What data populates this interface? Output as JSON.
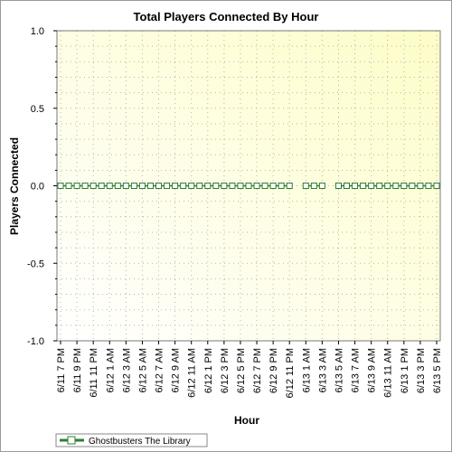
{
  "chart_data": {
    "type": "line",
    "title": "Total Players Connected By Hour",
    "xlabel": "Hour",
    "ylabel": "Players Connected",
    "ylim": [
      -1.0,
      1.0
    ],
    "y_ticks": [
      "1.0",
      "0.5",
      "0.0",
      "-0.5",
      "-1.0"
    ],
    "y_tick_values": [
      1.0,
      0.5,
      0.0,
      -0.5,
      -1.0
    ],
    "x_tick_labels": [
      "6/11 7 PM",
      "6/11 9 PM",
      "6/11 11 PM",
      "6/12 1 AM",
      "6/12 3 AM",
      "6/12 5 AM",
      "6/12 7 AM",
      "6/12 9 AM",
      "6/12 11 AM",
      "6/12 1 PM",
      "6/12 3 PM",
      "6/12 5 PM",
      "6/12 7 PM",
      "6/12 9 PM",
      "6/12 11 PM",
      "6/13 1 AM",
      "6/13 3 AM",
      "6/13 5 AM",
      "6/13 7 AM",
      "6/13 9 AM",
      "6/13 11 AM",
      "6/13 1 PM",
      "6/13 3 PM",
      "6/13 5 PM"
    ],
    "x_range_hours": [
      0,
      46
    ],
    "grid": true,
    "legend_position": "bottom-left",
    "series": [
      {
        "name": "Ghostbusters The Library",
        "color": "#2e7d32",
        "x_hours": [
          0,
          1,
          2,
          3,
          4,
          5,
          6,
          7,
          8,
          9,
          10,
          11,
          12,
          13,
          14,
          15,
          16,
          17,
          18,
          19,
          20,
          21,
          22,
          23,
          24,
          25,
          26,
          27,
          28,
          30,
          31,
          32,
          34,
          35,
          36,
          37,
          38,
          39,
          40,
          41,
          42,
          43,
          44,
          45,
          46
        ],
        "values": [
          0,
          0,
          0,
          0,
          0,
          0,
          0,
          0,
          0,
          0,
          0,
          0,
          0,
          0,
          0,
          0,
          0,
          0,
          0,
          0,
          0,
          0,
          0,
          0,
          0,
          0,
          0,
          0,
          0,
          0,
          0,
          0,
          0,
          0,
          0,
          0,
          0,
          0,
          0,
          0,
          0,
          0,
          0,
          0,
          0
        ]
      }
    ]
  },
  "colors": {
    "plot_bg_top": "#fdfdd2",
    "plot_bg_bottom": "#ffffff",
    "grid": "#b5b5b5",
    "series_line": "#2e7d32",
    "marker_fill": "#ffffff"
  }
}
